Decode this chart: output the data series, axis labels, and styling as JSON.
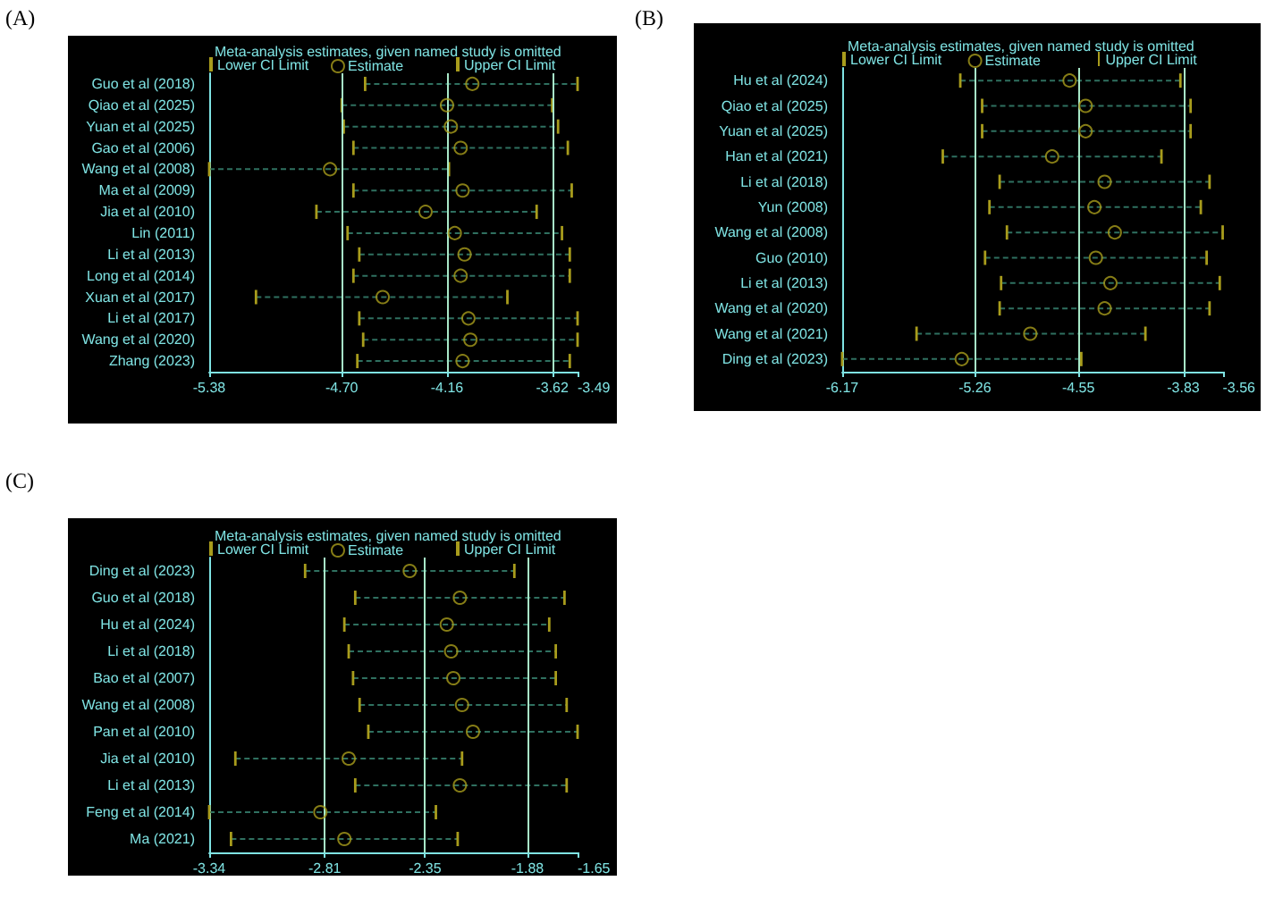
{
  "chart_data": [
    {
      "type": "scatter",
      "orientation": "horizontal",
      "title": "(A)",
      "subtitle": "Meta-analysis estimates, given named study is omitted",
      "annotations": [
        "Lower CI Limit",
        "Upper CI Limit"
      ],
      "categories": [
        "Guo et al (2018)",
        "Qiao et al (2025)",
        "Yuan et al (2025)",
        "Gao et al (2006)",
        "Wang et al (2008)",
        "Ma et al (2009)",
        "Jia et al (2010)",
        "Lin (2011)",
        "Li et al (2013)",
        "Long et al (2014)",
        "Xuan et al (2017)",
        "Li et al (2017)",
        "Wang et al (2020)",
        "Zhang (2023)"
      ],
      "series": [
        {
          "name": "Estimate",
          "color": "#a89c1c",
          "values": [
            -4.03,
            -4.16,
            -4.14,
            -4.09,
            -4.76,
            -4.08,
            -4.27,
            -4.12,
            -4.07,
            -4.09,
            -4.49,
            -4.05,
            -4.04,
            -4.08
          ],
          "errors": [
            [
              -4.58,
              -3.49
            ],
            [
              -4.7,
              -3.62
            ],
            [
              -4.69,
              -3.59
            ],
            [
              -4.64,
              -3.54
            ],
            [
              -5.38,
              -4.15
            ],
            [
              -4.64,
              -3.52
            ],
            [
              -4.83,
              -3.7
            ],
            [
              -4.67,
              -3.57
            ],
            [
              -4.61,
              -3.53
            ],
            [
              -4.64,
              -3.53
            ],
            [
              -5.14,
              -3.85
            ],
            [
              -4.61,
              -3.49
            ],
            [
              -4.59,
              -3.49
            ],
            [
              -4.62,
              -3.53
            ]
          ]
        }
      ],
      "xlim": [
        -5.38,
        -3.49
      ],
      "xticks": [
        -5.38,
        {
          "value": -4.7,
          "label": "-4.70"
        },
        -4.16,
        -3.62,
        -3.49
      ],
      "ref_lines": [
        {
          "axis": "x",
          "value": -4.7,
          "color": "#a8e8c8"
        },
        {
          "axis": "x",
          "value": -4.16,
          "color": "#a8e8c8"
        },
        {
          "axis": "x",
          "value": -3.62,
          "color": "#a8e8c8"
        }
      ],
      "legend": "top",
      "grid": false,
      "marker": "circle",
      "line_style": "dashed"
    },
    {
      "type": "scatter",
      "orientation": "horizontal",
      "title": "(B)",
      "subtitle": "Meta-analysis estimates, given named study is omitted",
      "annotations": [
        "Lower CI Limit",
        "Upper CI Limit"
      ],
      "categories": [
        "Hu et al (2024)",
        "Qiao et al (2025)",
        "Yuan et al (2025)",
        "Han et al (2021)",
        "Li et al (2018)",
        "Yun (2008)",
        "Wang et al (2008)",
        "Guo (2010)",
        "Li et al (2013)",
        "Wang et al (2020)",
        "Wang et al (2021)",
        "Ding et al (2023)"
      ],
      "series": [
        {
          "name": "Estimate",
          "color": "#a89c1c",
          "values": [
            -4.61,
            -4.5,
            -4.5,
            -4.73,
            -4.37,
            -4.44,
            -4.3,
            -4.43,
            -4.33,
            -4.37,
            -4.88,
            -5.35
          ],
          "errors": [
            [
              -5.36,
              -3.85
            ],
            [
              -5.21,
              -3.78
            ],
            [
              -5.21,
              -3.78
            ],
            [
              -5.48,
              -3.98
            ],
            [
              -5.09,
              -3.65
            ],
            [
              -5.16,
              -3.71
            ],
            [
              -5.04,
              -3.56
            ],
            [
              -5.19,
              -3.67
            ],
            [
              -5.08,
              -3.58
            ],
            [
              -5.09,
              -3.65
            ],
            [
              -5.66,
              -4.09
            ],
            [
              -6.17,
              -4.53
            ]
          ]
        }
      ],
      "xlim": [
        -6.17,
        -3.56
      ],
      "xticks": [
        -6.17,
        -5.26,
        -4.55,
        -3.83,
        -3.56
      ],
      "ref_lines": [
        {
          "axis": "x",
          "value": -5.26,
          "color": "#a8e8c8"
        },
        {
          "axis": "x",
          "value": -4.55,
          "color": "#a8e8c8"
        },
        {
          "axis": "x",
          "value": -3.83,
          "color": "#a8e8c8"
        }
      ],
      "legend": "top",
      "grid": false,
      "marker": "circle",
      "line_style": "dashed"
    },
    {
      "type": "scatter",
      "orientation": "horizontal",
      "title": "(C)",
      "subtitle": "Meta-analysis estimates, given named study is omitted",
      "annotations": [
        "Lower CI Limit",
        "Upper CI Limit"
      ],
      "categories": [
        "Ding et al (2023)",
        "Guo et al (2018)",
        "Hu et al (2024)",
        "Li et al (2018)",
        "Bao et al (2007)",
        "Wang et al (2008)",
        "Pan et al (2010)",
        "Jia et al (2010)",
        "Li et al (2013)",
        "Feng et al (2014)",
        "Ma (2021)"
      ],
      "series": [
        {
          "name": "Estimate",
          "color": "#a89c1c",
          "values": [
            -2.42,
            -2.19,
            -2.25,
            -2.23,
            -2.22,
            -2.18,
            -2.13,
            -2.7,
            -2.19,
            -2.83,
            -2.72
          ],
          "errors": [
            [
              -2.9,
              -1.94
            ],
            [
              -2.67,
              -1.71
            ],
            [
              -2.72,
              -1.78
            ],
            [
              -2.7,
              -1.75
            ],
            [
              -2.68,
              -1.75
            ],
            [
              -2.65,
              -1.7
            ],
            [
              -2.61,
              -1.65
            ],
            [
              -3.22,
              -2.18
            ],
            [
              -2.67,
              -1.7
            ],
            [
              -3.34,
              -2.3
            ],
            [
              -3.24,
              -2.2
            ]
          ]
        }
      ],
      "xlim": [
        -3.34,
        -1.65
      ],
      "xticks": [
        -3.34,
        -2.81,
        -2.35,
        -1.88,
        -1.65
      ],
      "ref_lines": [
        {
          "axis": "x",
          "value": -2.81,
          "color": "#a8e8c8"
        },
        {
          "axis": "x",
          "value": -2.35,
          "color": "#a8e8c8"
        },
        {
          "axis": "x",
          "value": -1.88,
          "color": "#a8e8c8"
        }
      ],
      "legend": "top",
      "grid": false,
      "marker": "circle",
      "line_style": "dashed"
    }
  ]
}
